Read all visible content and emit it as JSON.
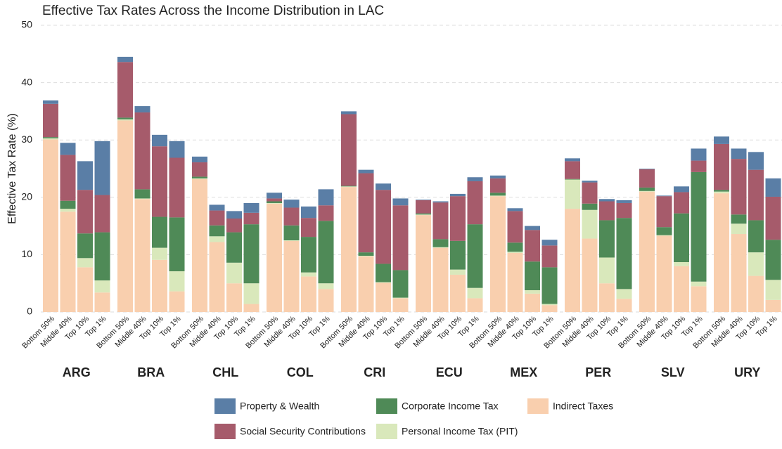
{
  "chart_data": {
    "type": "stacked_bar",
    "title": "Effective Tax Rates Across the Income Distribution in LAC",
    "y_label": "Effective Tax Rate (%)",
    "groups": [
      "ARG",
      "BRA",
      "CHL",
      "COL",
      "CRI",
      "ECU",
      "MEX",
      "PER",
      "SLV",
      "URY"
    ],
    "categories": [
      "Bottom 50%",
      "Middle 40%",
      "Top 10%",
      "Top 1%",
      "Bottom 50%",
      "Middle 40%",
      "Top 10%",
      "Top 1%",
      "Bottom 50%",
      "Middle 40%",
      "Top 10%",
      "Top 1%",
      "Bottom 50%",
      "Middle 40%",
      "Top 10%",
      "Top 1%",
      "Bottom 50%",
      "Middle 40%",
      "Top 10%",
      "Top 1%",
      "Bottom 50%",
      "Middle 40%",
      "Top 10%",
      "Top 1%",
      "Bottom 50%",
      "Middle 40%",
      "Top 10%",
      "Top 1%",
      "Bottom 50%",
      "Middle 40%",
      "Top 10%",
      "Top 1%",
      "Bottom 50%",
      "Middle 40%",
      "Top 10%",
      "Top 1%",
      "Bottom 50%",
      "Middle 40%",
      "Top 10%",
      "Top 1%"
    ],
    "series": [
      {
        "name": "Property & Wealth",
        "color": "#5a7ea6",
        "values": [
          0.6,
          2.1,
          5.0,
          9.4,
          0.9,
          1.1,
          2.0,
          2.9,
          1.0,
          1.0,
          1.3,
          1.7,
          1.0,
          1.4,
          2.0,
          2.8,
          0.5,
          0.6,
          1.1,
          1.2,
          0.1,
          0.2,
          0.4,
          0.7,
          0.5,
          0.5,
          0.7,
          1.0,
          0.5,
          0.3,
          0.4,
          0.5,
          0.1,
          0.1,
          1.0,
          2.1,
          1.3,
          1.8,
          3.1,
          3.2
        ]
      },
      {
        "name": "Social Security Contributions",
        "color": "#a65b6b",
        "values": [
          5.8,
          8.0,
          7.6,
          6.5,
          9.7,
          13.4,
          12.3,
          10.4,
          2.5,
          2.6,
          2.4,
          2.0,
          0.5,
          3.1,
          3.3,
          2.7,
          12.5,
          13.8,
          12.9,
          11.3,
          2.3,
          6.4,
          7.8,
          7.5,
          2.5,
          5.5,
          5.5,
          3.8,
          3.1,
          3.7,
          3.3,
          2.6,
          3.2,
          5.4,
          3.7,
          2.0,
          8.0,
          9.7,
          8.8,
          7.5
        ]
      },
      {
        "name": "Corporate Income Tax",
        "color": "#4f8a57",
        "values": [
          0.2,
          1.4,
          4.3,
          8.4,
          0.3,
          1.6,
          5.4,
          9.4,
          0.3,
          1.9,
          5.3,
          10.3,
          0.3,
          2.6,
          6.2,
          10.9,
          0.1,
          0.6,
          3.2,
          4.8,
          0.2,
          1.4,
          5.0,
          11.1,
          0.5,
          1.6,
          5.0,
          6.4,
          0.1,
          1.1,
          6.5,
          12.4,
          0.6,
          1.4,
          8.5,
          19.1,
          0.3,
          1.6,
          5.6,
          7.0
        ]
      },
      {
        "name": "Personal Income Tax (PIT)",
        "color": "#d9e8bb",
        "values": [
          0.2,
          0.5,
          1.6,
          2.1,
          0.2,
          0.1,
          2.1,
          3.5,
          0.1,
          1.0,
          3.6,
          3.6,
          0.1,
          0.1,
          0.7,
          1.0,
          0.1,
          0.1,
          0.1,
          0.1,
          0.1,
          0.1,
          0.9,
          1.8,
          0.1,
          0.2,
          0.6,
          0.2,
          5.1,
          5.0,
          4.5,
          1.7,
          0.1,
          0.1,
          0.7,
          0.8,
          0.3,
          1.8,
          4.1,
          3.5
        ]
      },
      {
        "name": "Indirect Taxes",
        "color": "#f9cfae",
        "values": [
          30.1,
          17.5,
          7.8,
          3.4,
          33.4,
          19.7,
          9.1,
          3.6,
          23.2,
          12.2,
          5.0,
          1.4,
          18.9,
          12.4,
          6.2,
          4.0,
          21.8,
          9.7,
          5.1,
          2.4,
          16.9,
          11.2,
          6.5,
          2.4,
          20.2,
          10.3,
          3.2,
          1.2,
          18.0,
          12.8,
          5.0,
          2.3,
          21.0,
          13.3,
          8.0,
          4.5,
          20.7,
          13.6,
          6.3,
          2.1
        ]
      }
    ],
    "ylim": [
      0,
      50
    ],
    "yticks": [
      0,
      10,
      20,
      30,
      40,
      50
    ],
    "grid": true
  }
}
